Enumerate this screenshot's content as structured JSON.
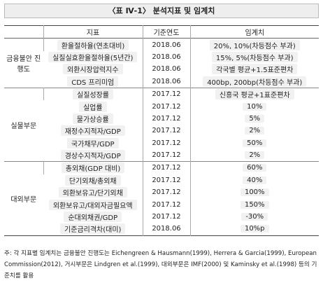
{
  "title": "〈표 Ⅳ-1〉 분석지표 및 임계치",
  "table": {
    "header": [
      "지표",
      "기준연도",
      "임계치"
    ],
    "groups": [
      {
        "name": "금융불안 진행도",
        "rows": [
          [
            "환율절하율(연초대비)",
            "2018.06",
            "20%, 10%(차등점수 부과)"
          ],
          [
            "실질실효환율절하율(5년간)",
            "2018.06",
            "15%, 5%(차등점수 부과)"
          ],
          [
            "외환시장압력지수",
            "2018.06",
            "각국별 평균+1.5표준편차"
          ],
          [
            "CDS 프리미엄",
            "2018.06",
            "400bp, 200bp(차등점수 부과)"
          ]
        ]
      },
      {
        "name": "실물부문",
        "rows": [
          [
            "실질성장률",
            "2017.12",
            "신흥국 평균+1표준편차"
          ],
          [
            "실업률",
            "2017.12",
            "10%"
          ],
          [
            "물가상승률",
            "2017.12",
            "5%"
          ],
          [
            "재정수지적자/GDP",
            "2017.12",
            "2%"
          ],
          [
            "국가채무/GDP",
            "2017.12",
            "50%"
          ],
          [
            "경상수지적자/GDP",
            "2017.12",
            "2%"
          ]
        ]
      },
      {
        "name": "대외부문",
        "rows": [
          [
            "총외채(GDP 대비)",
            "2017.12",
            "60%"
          ],
          [
            "단기외채/총외채",
            "2017.12",
            "40%"
          ],
          [
            "외환보유고/단기외채",
            "2017.12",
            "100%"
          ],
          [
            "외환보유고/대외자금필요액",
            "2017.12",
            "150%"
          ],
          [
            "순대외채권/GDP",
            "2017.12",
            "-30%"
          ],
          [
            "기준금리격차(대미)",
            "2018.06",
            "10%p"
          ]
        ]
      }
    ]
  },
  "note": "주: 각 지표별 임계치는 금융불안 진행도는 Eichengreen & Hausmann(1999), Herrera & Garcia(1999), European Commission(2012), 거시부문은 Lindgren et al.(1999), 대외부문은 IMF(2000) 및 Kaminsky et al.(1998) 등의 기준치를 활용"
}
